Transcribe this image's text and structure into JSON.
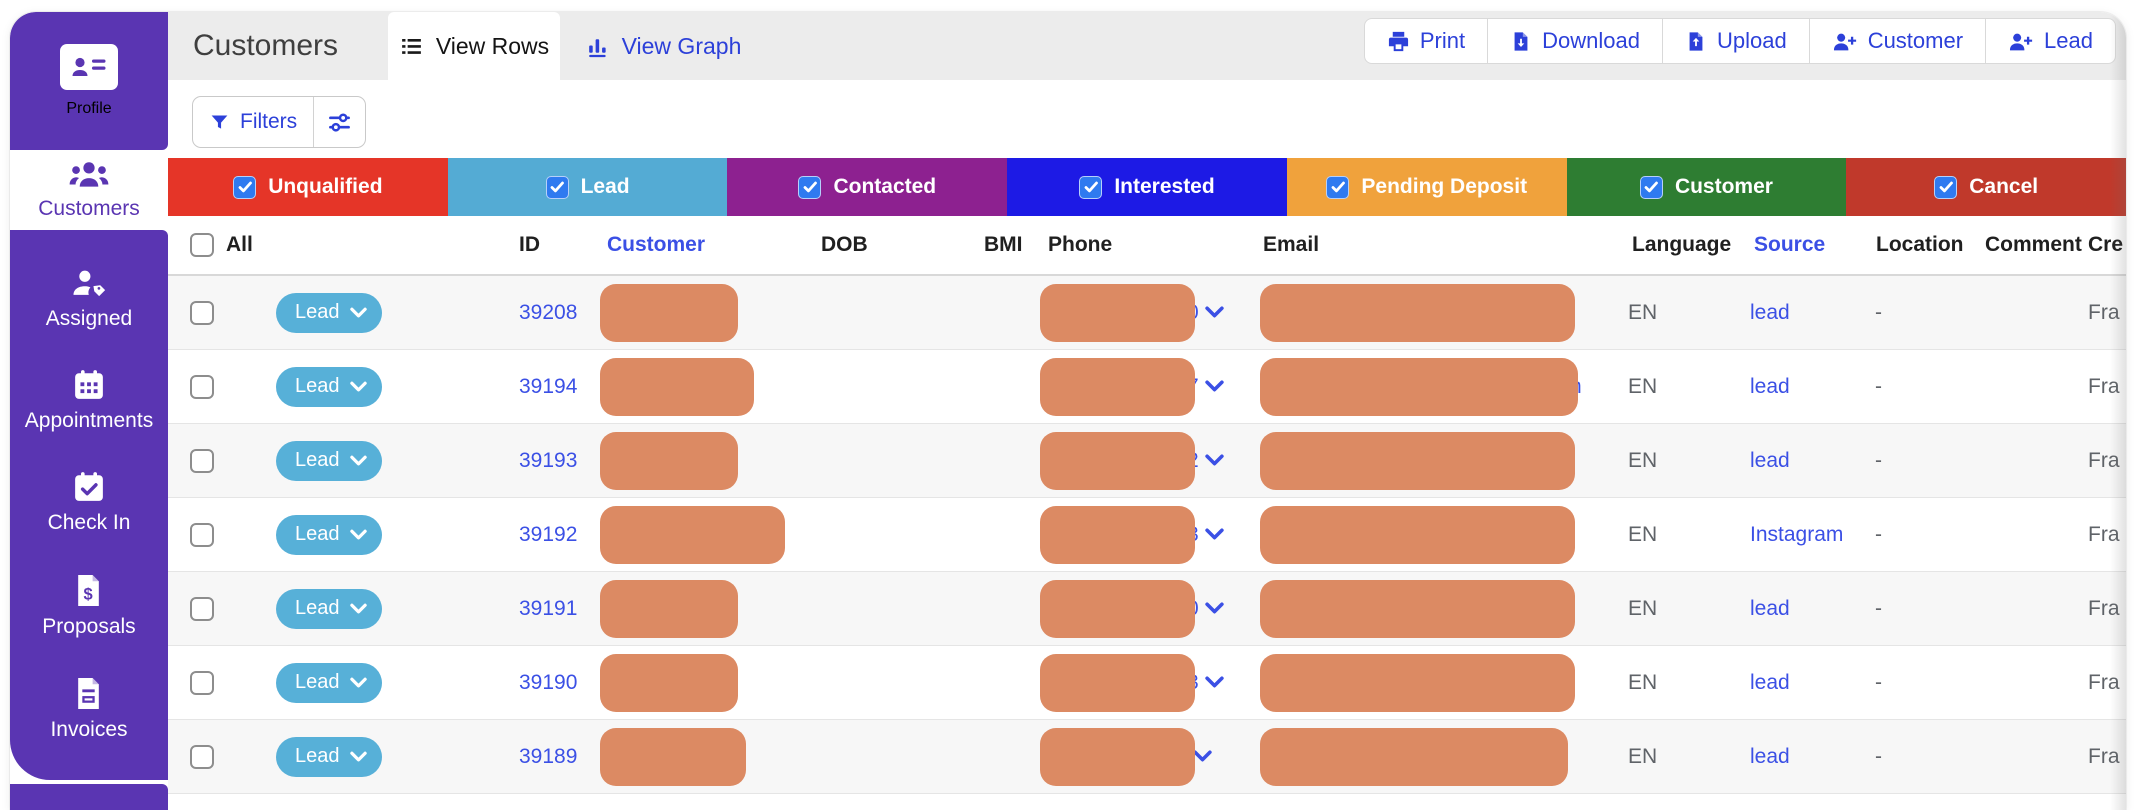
{
  "colors": {
    "sidebar": "#5a35b2",
    "accent": "#2c40d9",
    "link": "#3b50e5",
    "pill": "#57b0d8",
    "blob": "#dc8a63",
    "checkbox_blue": "#2f7af0",
    "muted": "#5f6368"
  },
  "sidebar": {
    "profile": {
      "label": "Profile"
    },
    "active": {
      "label": "Customers"
    },
    "items": [
      {
        "label": "Assigned"
      },
      {
        "label": "Appointments"
      },
      {
        "label": "Check In"
      },
      {
        "label": "Proposals"
      },
      {
        "label": "Invoices"
      }
    ]
  },
  "header": {
    "title": "Customers",
    "tab_rows": "View Rows",
    "tab_graph": "View Graph",
    "actions": {
      "print": "Print",
      "download": "Download",
      "upload": "Upload",
      "customer": "Customer",
      "lead": "Lead"
    }
  },
  "filters": {
    "label": "Filters"
  },
  "status_filters": [
    {
      "label": "Unqualified",
      "color": "#e53528",
      "checked": true
    },
    {
      "label": "Lead",
      "color": "#54abd4",
      "checked": true
    },
    {
      "label": "Contacted",
      "color": "#8d2190",
      "checked": true
    },
    {
      "label": "Interested",
      "color": "#1d1ae5",
      "checked": true
    },
    {
      "label": "Pending Deposit",
      "color": "#f0a23c",
      "checked": true
    },
    {
      "label": "Customer",
      "color": "#2e7d32",
      "checked": true
    },
    {
      "label": "Cancel",
      "color": "#c0392b",
      "checked": true
    }
  ],
  "table": {
    "headers": {
      "all": "All",
      "id": "ID",
      "customer": "Customer",
      "dob": "DOB",
      "bmi": "BMI",
      "phone": "Phone",
      "email": "Email",
      "language": "Language",
      "source": "Source",
      "location": "Location",
      "comment": "Comment",
      "created": "Cre"
    },
    "rows": [
      {
        "status": "Lead",
        "id": "39208",
        "name_w": 138,
        "phone_fragment": "0",
        "email_w": 315,
        "email_fragment": "",
        "language": "EN",
        "source": "lead",
        "location": "-",
        "created": "Fra"
      },
      {
        "status": "Lead",
        "id": "39194",
        "name_w": 154,
        "phone_fragment": "7",
        "email_w": 318,
        "email_fragment": "n",
        "language": "EN",
        "source": "lead",
        "location": "-",
        "created": "Fra"
      },
      {
        "status": "Lead",
        "id": "39193",
        "name_w": 138,
        "phone_fragment": "2",
        "email_w": 315,
        "email_fragment": "",
        "language": "EN",
        "source": "lead",
        "location": "-",
        "created": "Fra"
      },
      {
        "status": "Lead",
        "id": "39192",
        "name_w": 185,
        "phone_fragment": "3",
        "email_w": 315,
        "email_fragment": "",
        "language": "EN",
        "source": "Instagram",
        "location": "-",
        "created": "Fra"
      },
      {
        "status": "Lead",
        "id": "39191",
        "name_w": 138,
        "phone_fragment": "0",
        "email_w": 315,
        "email_fragment": "",
        "language": "EN",
        "source": "lead",
        "location": "-",
        "created": "Fra"
      },
      {
        "status": "Lead",
        "id": "39190",
        "name_w": 138,
        "phone_fragment": "3",
        "email_w": 315,
        "email_fragment": "",
        "language": "EN",
        "source": "lead",
        "location": "-",
        "created": "Fra"
      },
      {
        "status": "Lead",
        "id": "39189",
        "name_w": 146,
        "phone_fragment": "",
        "email_w": 308,
        "email_fragment": "",
        "language": "EN",
        "source": "lead",
        "location": "-",
        "created": "Fra"
      }
    ]
  }
}
